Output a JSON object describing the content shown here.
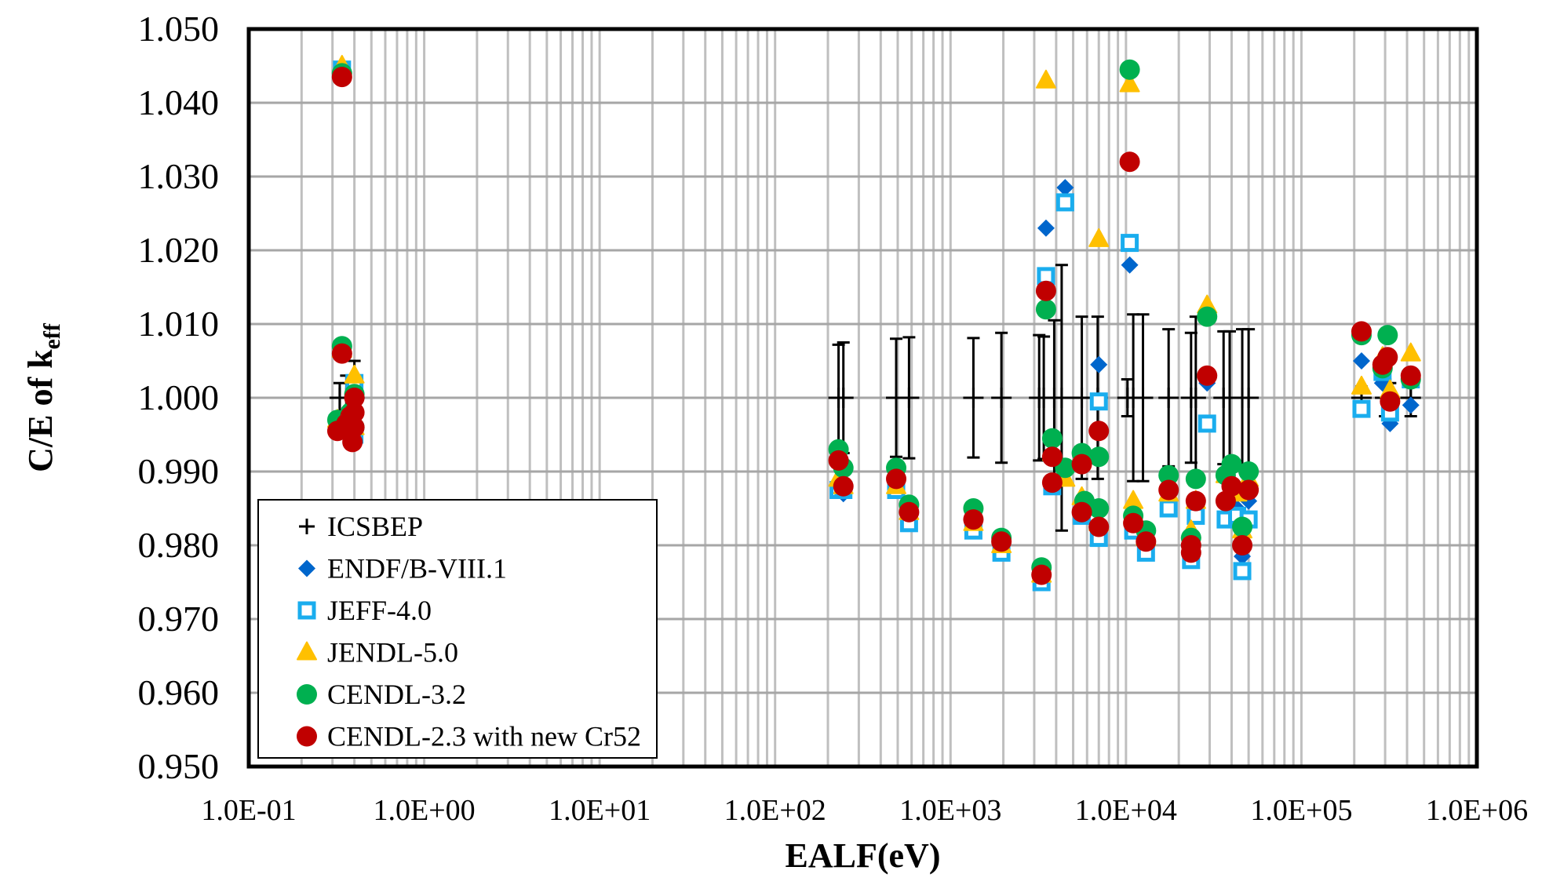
{
  "chart_data": {
    "type": "scatter",
    "xlabel": "EALF(eV)",
    "ylabel": "C/E of k",
    "ylabel_subscript": "eff",
    "xscale": "log",
    "xlim": [
      0.1,
      1000000
    ],
    "ylim": [
      0.95,
      1.05
    ],
    "grid": true,
    "legend_position": "bottom-left",
    "x_tick_labels": [
      "1.0E-01",
      "1.0E+00",
      "1.0E+01",
      "1.0E+02",
      "1.0E+03",
      "1.0E+04",
      "1.0E+05",
      "1.0E+06"
    ],
    "x_ticks": [
      0.1,
      1,
      10,
      100,
      1000,
      10000,
      100000,
      1000000
    ],
    "y_tick_labels": [
      "1.050",
      "1.040",
      "1.030",
      "1.020",
      "1.010",
      "1.000",
      "0.990",
      "0.980",
      "0.970",
      "0.960",
      "0.950"
    ],
    "y_ticks": [
      1.05,
      1.04,
      1.03,
      1.02,
      1.01,
      1.0,
      0.99,
      0.98,
      0.97,
      0.96,
      0.95
    ],
    "series": [
      {
        "name": "ICSBEP",
        "marker": "plus",
        "color": "#000000",
        "points": [
          {
            "x": 0.33,
            "y": 1.0,
            "err": 0.002
          },
          {
            "x": 0.36,
            "y": 1.0,
            "err": 0.003
          },
          {
            "x": 0.4,
            "y": 1.0,
            "err": 0.005
          },
          {
            "x": 230,
            "y": 1.0,
            "err": 0.0072
          },
          {
            "x": 245,
            "y": 1.0,
            "err": 0.0075
          },
          {
            "x": 490,
            "y": 1.0,
            "err": 0.008
          },
          {
            "x": 580,
            "y": 1.0,
            "err": 0.0082
          },
          {
            "x": 1350,
            "y": 1.0,
            "err": 0.0081
          },
          {
            "x": 1950,
            "y": 1.0,
            "err": 0.0088
          },
          {
            "x": 3200,
            "y": 1.0,
            "err": 0.0085
          },
          {
            "x": 3400,
            "y": 1.0,
            "err": 0.0083
          },
          {
            "x": 3900,
            "y": 1.0,
            "err": 0.0105
          },
          {
            "x": 4300,
            "y": 1.0,
            "err": 0.018
          },
          {
            "x": 5600,
            "y": 1.0,
            "err": 0.011
          },
          {
            "x": 6900,
            "y": 1.0,
            "err": 0.011
          },
          {
            "x": 10200,
            "y": 1.0,
            "err": 0.0025
          },
          {
            "x": 11000,
            "y": 1.0,
            "err": 0.0113
          },
          {
            "x": 12500,
            "y": 1.0,
            "err": 0.0113
          },
          {
            "x": 17500,
            "y": 1.0,
            "err": 0.0093
          },
          {
            "x": 23500,
            "y": 1.0,
            "err": 0.0088
          },
          {
            "x": 25000,
            "y": 1.0,
            "err": 0.011
          },
          {
            "x": 36000,
            "y": 1.0,
            "err": 0.009
          },
          {
            "x": 39000,
            "y": 1.0,
            "err": 0.009
          },
          {
            "x": 46000,
            "y": 1.0,
            "err": 0.0093
          },
          {
            "x": 50000,
            "y": 1.0,
            "err": 0.0093
          },
          {
            "x": 220000,
            "y": 1.0,
            "err": 0.0015
          },
          {
            "x": 300000,
            "y": 1.0,
            "err": 0.0025
          },
          {
            "x": 320000,
            "y": 1.0,
            "err": 0.002
          },
          {
            "x": 420000,
            "y": 1.0,
            "err": 0.0025
          }
        ]
      },
      {
        "name": "ENDF/B-VIII.1",
        "marker": "diamond",
        "color": "#0066CC",
        "points": [
          {
            "x": 0.34,
            "y": 1.0445
          },
          {
            "x": 0.34,
            "y": 1.0065
          },
          {
            "x": 0.32,
            "y": 0.9965
          },
          {
            "x": 0.38,
            "y": 0.9975
          },
          {
            "x": 0.4,
            "y": 1.002
          },
          {
            "x": 0.4,
            "y": 0.995
          },
          {
            "x": 230,
            "y": 0.988
          },
          {
            "x": 245,
            "y": 0.987
          },
          {
            "x": 490,
            "y": 0.988
          },
          {
            "x": 580,
            "y": 0.983
          },
          {
            "x": 1350,
            "y": 0.982
          },
          {
            "x": 1950,
            "y": 0.979
          },
          {
            "x": 3300,
            "y": 0.975
          },
          {
            "x": 3500,
            "y": 1.023
          },
          {
            "x": 4500,
            "y": 1.0285
          },
          {
            "x": 3800,
            "y": 0.988
          },
          {
            "x": 5600,
            "y": 0.985
          },
          {
            "x": 7000,
            "y": 1.0045
          },
          {
            "x": 7000,
            "y": 0.981
          },
          {
            "x": 10500,
            "y": 1.018
          },
          {
            "x": 11000,
            "y": 0.982
          },
          {
            "x": 13000,
            "y": 0.979
          },
          {
            "x": 17500,
            "y": 0.985
          },
          {
            "x": 23500,
            "y": 0.978
          },
          {
            "x": 25000,
            "y": 0.984
          },
          {
            "x": 29000,
            "y": 1.002
          },
          {
            "x": 37000,
            "y": 0.984
          },
          {
            "x": 43000,
            "y": 0.985
          },
          {
            "x": 46000,
            "y": 0.9785
          },
          {
            "x": 50000,
            "y": 0.986
          },
          {
            "x": 220000,
            "y": 1.005
          },
          {
            "x": 290000,
            "y": 1.002
          },
          {
            "x": 320000,
            "y": 0.9965
          },
          {
            "x": 420000,
            "y": 0.999
          }
        ]
      },
      {
        "name": "JEFF-4.0",
        "marker": "square-open",
        "color": "#1AADEE",
        "points": [
          {
            "x": 0.34,
            "y": 1.0445
          },
          {
            "x": 0.34,
            "y": 1.0065
          },
          {
            "x": 0.32,
            "y": 0.9965
          },
          {
            "x": 0.38,
            "y": 0.9975
          },
          {
            "x": 0.4,
            "y": 1.002
          },
          {
            "x": 0.4,
            "y": 0.995
          },
          {
            "x": 230,
            "y": 0.9875
          },
          {
            "x": 245,
            "y": 0.9875
          },
          {
            "x": 490,
            "y": 0.9875
          },
          {
            "x": 580,
            "y": 0.983
          },
          {
            "x": 1350,
            "y": 0.982
          },
          {
            "x": 1950,
            "y": 0.979
          },
          {
            "x": 3300,
            "y": 0.975
          },
          {
            "x": 3500,
            "y": 1.0165
          },
          {
            "x": 4500,
            "y": 1.0265
          },
          {
            "x": 3800,
            "y": 0.988
          },
          {
            "x": 5600,
            "y": 0.984
          },
          {
            "x": 7000,
            "y": 0.9995
          },
          {
            "x": 7000,
            "y": 0.981
          },
          {
            "x": 10500,
            "y": 1.021
          },
          {
            "x": 11000,
            "y": 0.982
          },
          {
            "x": 13000,
            "y": 0.979
          },
          {
            "x": 17500,
            "y": 0.985
          },
          {
            "x": 23500,
            "y": 0.978
          },
          {
            "x": 25000,
            "y": 0.984
          },
          {
            "x": 29000,
            "y": 0.9965
          },
          {
            "x": 37000,
            "y": 0.9835
          },
          {
            "x": 43000,
            "y": 0.984
          },
          {
            "x": 46000,
            "y": 0.9765
          },
          {
            "x": 50000,
            "y": 0.9835
          },
          {
            "x": 220000,
            "y": 0.9985
          },
          {
            "x": 290000,
            "y": 1.0035
          },
          {
            "x": 320000,
            "y": 0.998
          },
          {
            "x": 420000,
            "y": 1.0025
          }
        ]
      },
      {
        "name": "JENDL-5.0",
        "marker": "triangle",
        "color": "#FFC000",
        "points": [
          {
            "x": 0.34,
            "y": 1.045
          },
          {
            "x": 0.34,
            "y": 1.0065
          },
          {
            "x": 0.32,
            "y": 0.997
          },
          {
            "x": 0.38,
            "y": 0.998
          },
          {
            "x": 0.4,
            "y": 1.003
          },
          {
            "x": 0.4,
            "y": 0.996
          },
          {
            "x": 230,
            "y": 0.989
          },
          {
            "x": 245,
            "y": 0.988
          },
          {
            "x": 490,
            "y": 0.988
          },
          {
            "x": 580,
            "y": 0.9845
          },
          {
            "x": 1350,
            "y": 0.983
          },
          {
            "x": 1950,
            "y": 0.98
          },
          {
            "x": 3300,
            "y": 0.976
          },
          {
            "x": 3500,
            "y": 1.043
          },
          {
            "x": 3800,
            "y": 0.9925
          },
          {
            "x": 4500,
            "y": 0.989
          },
          {
            "x": 5600,
            "y": 0.9865
          },
          {
            "x": 7000,
            "y": 1.0215
          },
          {
            "x": 7000,
            "y": 0.983
          },
          {
            "x": 10500,
            "y": 1.0425
          },
          {
            "x": 11000,
            "y": 0.986
          },
          {
            "x": 13000,
            "y": 0.981
          },
          {
            "x": 17500,
            "y": 0.987
          },
          {
            "x": 23500,
            "y": 0.982
          },
          {
            "x": 25000,
            "y": 0.986
          },
          {
            "x": 29000,
            "y": 1.0125
          },
          {
            "x": 37000,
            "y": 0.9895
          },
          {
            "x": 43000,
            "y": 0.987
          },
          {
            "x": 46000,
            "y": 0.982
          },
          {
            "x": 50000,
            "y": 0.989
          },
          {
            "x": 220000,
            "y": 1.0015
          },
          {
            "x": 290000,
            "y": 1.0055
          },
          {
            "x": 320000,
            "y": 1.001
          },
          {
            "x": 420000,
            "y": 1.006
          }
        ]
      },
      {
        "name": "CENDL-3.2",
        "marker": "circle",
        "color": "#00B050",
        "points": [
          {
            "x": 0.34,
            "y": 1.044
          },
          {
            "x": 0.34,
            "y": 1.007
          },
          {
            "x": 0.32,
            "y": 0.997
          },
          {
            "x": 0.38,
            "y": 0.998
          },
          {
            "x": 0.4,
            "y": 1.0005
          },
          {
            "x": 0.4,
            "y": 0.996
          },
          {
            "x": 230,
            "y": 0.993
          },
          {
            "x": 245,
            "y": 0.9905
          },
          {
            "x": 490,
            "y": 0.9905
          },
          {
            "x": 580,
            "y": 0.9855
          },
          {
            "x": 1350,
            "y": 0.985
          },
          {
            "x": 1950,
            "y": 0.981
          },
          {
            "x": 3300,
            "y": 0.977
          },
          {
            "x": 3500,
            "y": 1.012
          },
          {
            "x": 3800,
            "y": 0.9945
          },
          {
            "x": 4500,
            "y": 0.9905
          },
          {
            "x": 5600,
            "y": 0.9925
          },
          {
            "x": 5800,
            "y": 0.986
          },
          {
            "x": 7000,
            "y": 0.992
          },
          {
            "x": 7000,
            "y": 0.985
          },
          {
            "x": 10500,
            "y": 1.0445
          },
          {
            "x": 11000,
            "y": 0.984
          },
          {
            "x": 13000,
            "y": 0.982
          },
          {
            "x": 17500,
            "y": 0.9895
          },
          {
            "x": 23500,
            "y": 0.981
          },
          {
            "x": 25000,
            "y": 0.989
          },
          {
            "x": 29000,
            "y": 1.011
          },
          {
            "x": 37000,
            "y": 0.9895
          },
          {
            "x": 40000,
            "y": 0.991
          },
          {
            "x": 46000,
            "y": 0.9825
          },
          {
            "x": 50000,
            "y": 0.99
          },
          {
            "x": 220000,
            "y": 1.0085
          },
          {
            "x": 290000,
            "y": 1.004
          },
          {
            "x": 310000,
            "y": 1.0085
          },
          {
            "x": 420000,
            "y": 1.0025
          }
        ]
      },
      {
        "name": "CENDL-2.3 with new Cr52",
        "marker": "circle",
        "color": "#C00000",
        "points": [
          {
            "x": 0.34,
            "y": 1.0435
          },
          {
            "x": 0.34,
            "y": 1.006
          },
          {
            "x": 0.32,
            "y": 0.9955
          },
          {
            "x": 0.36,
            "y": 0.9965
          },
          {
            "x": 0.38,
            "y": 0.9975
          },
          {
            "x": 0.4,
            "y": 1.0
          },
          {
            "x": 0.4,
            "y": 0.998
          },
          {
            "x": 0.4,
            "y": 0.996
          },
          {
            "x": 0.39,
            "y": 0.994
          },
          {
            "x": 230,
            "y": 0.9915
          },
          {
            "x": 245,
            "y": 0.988
          },
          {
            "x": 490,
            "y": 0.989
          },
          {
            "x": 580,
            "y": 0.9845
          },
          {
            "x": 1350,
            "y": 0.9835
          },
          {
            "x": 1950,
            "y": 0.9805
          },
          {
            "x": 3300,
            "y": 0.976
          },
          {
            "x": 3500,
            "y": 1.0145
          },
          {
            "x": 3800,
            "y": 0.992
          },
          {
            "x": 3800,
            "y": 0.9885
          },
          {
            "x": 5600,
            "y": 0.991
          },
          {
            "x": 5600,
            "y": 0.9845
          },
          {
            "x": 7000,
            "y": 0.9955
          },
          {
            "x": 7000,
            "y": 0.9825
          },
          {
            "x": 10500,
            "y": 1.032
          },
          {
            "x": 11000,
            "y": 0.983
          },
          {
            "x": 13000,
            "y": 0.9805
          },
          {
            "x": 17500,
            "y": 0.9875
          },
          {
            "x": 23500,
            "y": 0.979
          },
          {
            "x": 23500,
            "y": 0.98
          },
          {
            "x": 25000,
            "y": 0.986
          },
          {
            "x": 29000,
            "y": 1.003
          },
          {
            "x": 37000,
            "y": 0.986
          },
          {
            "x": 40000,
            "y": 0.988
          },
          {
            "x": 46000,
            "y": 0.98
          },
          {
            "x": 50000,
            "y": 0.9875
          },
          {
            "x": 220000,
            "y": 1.009
          },
          {
            "x": 290000,
            "y": 1.0045
          },
          {
            "x": 310000,
            "y": 1.0055
          },
          {
            "x": 320000,
            "y": 0.9995
          },
          {
            "x": 420000,
            "y": 1.003
          }
        ]
      }
    ]
  }
}
